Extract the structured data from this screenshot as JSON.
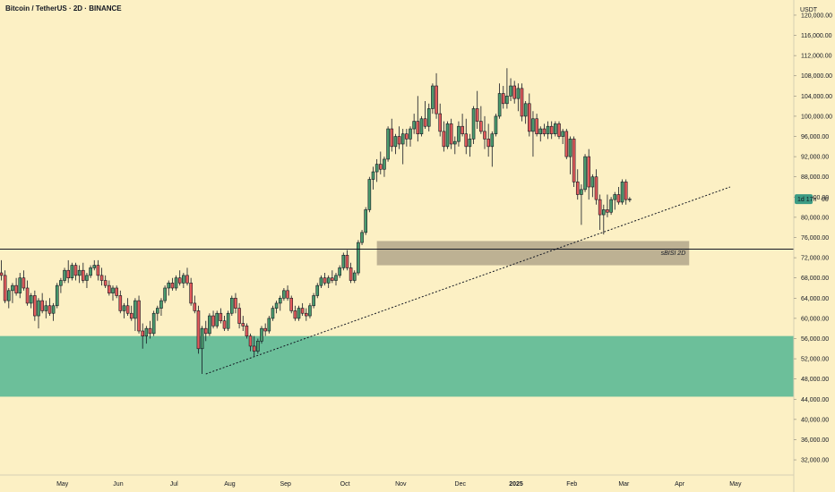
{
  "header": {
    "symbol_title": "Bitcoin / TetherUS · 2D · BINANCE"
  },
  "price_axis": {
    "currency": "USDT",
    "countdown_label": "1d 17h",
    "countdown_price_suffix": "00"
  },
  "annotations": {
    "zone_label": "sBISI 2D"
  },
  "colors": {
    "background": "#fcf0c4",
    "bull": "#26a69a",
    "bear": "#ef5350",
    "candle_bull_body": "#4a9b6e",
    "candle_bear_body": "#e35b5b",
    "green_zone": "#6cbf9a",
    "grey_zone": "#b9ad90",
    "label_bg": "#3d9c84"
  },
  "chart_data": {
    "type": "candlestick",
    "title": "Bitcoin / TetherUS · 2D · BINANCE",
    "y_unit": "USDT",
    "ylim": [
      29000,
      123000
    ],
    "y_ticks": [
      "120,000.00",
      "116,000.00",
      "112,000.00",
      "108,000.00",
      "104,000.00",
      "100,000.00",
      "96,000.00",
      "92,000.00",
      "88,000.00",
      "84,000.00",
      "80,000.00",
      "76,000.00",
      "72,000.00",
      "68,000.00",
      "64,000.00",
      "60,000.00",
      "56,000.00",
      "52,000.00",
      "48,000.00",
      "44,000.00",
      "40,000.00",
      "36,000.00",
      "32,000.00"
    ],
    "x_ticks": [
      "May",
      "Jun",
      "Jul",
      "Aug",
      "Sep",
      "Oct",
      "Nov",
      "Dec",
      "2025",
      "Feb",
      "Mar",
      "Apr",
      "May"
    ],
    "x_tick_bold": [
      "2025"
    ],
    "x_tick_index": [
      8,
      23,
      38,
      53,
      68,
      84,
      99,
      115,
      130,
      145,
      159,
      174,
      189
    ],
    "current_price": 83600,
    "horizontal_level": 73700,
    "zones": [
      {
        "name": "green",
        "from": 44500,
        "to": 56500
      },
      {
        "name": "grey",
        "from": 70500,
        "to": 75300,
        "label": "sBISI 2D",
        "start_index": 101,
        "end_index": 185
      }
    ],
    "trendline": {
      "start_index": 55,
      "start_price": 49000,
      "end_index": 196,
      "end_price": 86000
    },
    "ohlc": [
      [
        69000,
        71500,
        67500,
        68500
      ],
      [
        68500,
        69500,
        63000,
        63500
      ],
      [
        63500,
        66000,
        62000,
        65500
      ],
      [
        65500,
        67000,
        63000,
        66500
      ],
      [
        66500,
        68000,
        64500,
        65000
      ],
      [
        65000,
        69000,
        64000,
        68000
      ],
      [
        68000,
        69500,
        65500,
        66000
      ],
      [
        66000,
        67500,
        62500,
        63000
      ],
      [
        63000,
        65000,
        62000,
        64500
      ],
      [
        64500,
        65500,
        59500,
        60500
      ],
      [
        60500,
        64000,
        58000,
        63500
      ],
      [
        63500,
        65000,
        61000,
        61500
      ],
      [
        61500,
        63500,
        60000,
        62500
      ],
      [
        62500,
        64000,
        60500,
        61000
      ],
      [
        61000,
        63000,
        59500,
        62500
      ],
      [
        62500,
        67000,
        62000,
        66500
      ],
      [
        66500,
        68000,
        65000,
        67500
      ],
      [
        67500,
        70000,
        67000,
        69500
      ],
      [
        69500,
        71500,
        67000,
        68000
      ],
      [
        68000,
        71000,
        67500,
        70500
      ],
      [
        70500,
        71000,
        67500,
        68500
      ],
      [
        68500,
        70500,
        67000,
        69500
      ],
      [
        69500,
        71000,
        67000,
        67500
      ],
      [
        67500,
        69000,
        66000,
        68500
      ],
      [
        68500,
        70500,
        68000,
        70000
      ],
      [
        70000,
        71500,
        69500,
        70500
      ],
      [
        70500,
        71500,
        67500,
        68500
      ],
      [
        68500,
        70000,
        66500,
        67500
      ],
      [
        67500,
        68500,
        66000,
        66500
      ],
      [
        66500,
        67500,
        64500,
        65000
      ],
      [
        65000,
        66500,
        63500,
        66000
      ],
      [
        66000,
        66500,
        64000,
        64500
      ],
      [
        64500,
        65500,
        61000,
        61500
      ],
      [
        61500,
        63000,
        60000,
        62500
      ],
      [
        62500,
        64000,
        60500,
        61000
      ],
      [
        61000,
        62500,
        59500,
        60000
      ],
      [
        60000,
        64000,
        57500,
        63500
      ],
      [
        63500,
        64500,
        57000,
        57500
      ],
      [
        57500,
        59000,
        54000,
        56500
      ],
      [
        56500,
        58500,
        55000,
        58000
      ],
      [
        58000,
        59500,
        56000,
        57000
      ],
      [
        57000,
        61500,
        56500,
        61000
      ],
      [
        61000,
        62500,
        59500,
        62000
      ],
      [
        62000,
        64000,
        60500,
        63500
      ],
      [
        63500,
        66500,
        63000,
        66000
      ],
      [
        66000,
        67500,
        64500,
        67000
      ],
      [
        67000,
        68000,
        65500,
        66000
      ],
      [
        66000,
        68500,
        65500,
        68000
      ],
      [
        68000,
        69500,
        66500,
        67000
      ],
      [
        67000,
        69000,
        66000,
        68500
      ],
      [
        68500,
        70000,
        66500,
        67000
      ],
      [
        67000,
        68000,
        62500,
        63000
      ],
      [
        63000,
        64500,
        61000,
        61500
      ],
      [
        61500,
        62500,
        53000,
        54000
      ],
      [
        54000,
        58500,
        49000,
        58000
      ],
      [
        58000,
        59500,
        55500,
        57000
      ],
      [
        57000,
        61000,
        56500,
        60500
      ],
      [
        60500,
        61500,
        58000,
        58500
      ],
      [
        58500,
        61500,
        58000,
        61000
      ],
      [
        61000,
        62000,
        59000,
        59500
      ],
      [
        59500,
        60500,
        57500,
        58000
      ],
      [
        58000,
        61500,
        57500,
        61000
      ],
      [
        61000,
        64500,
        60500,
        64000
      ],
      [
        64000,
        65000,
        61000,
        62000
      ],
      [
        62000,
        63000,
        58000,
        59000
      ],
      [
        59000,
        60500,
        57500,
        58500
      ],
      [
        58500,
        59000,
        56000,
        56500
      ],
      [
        56500,
        57000,
        53500,
        54500
      ],
      [
        54500,
        56500,
        52500,
        53500
      ],
      [
        53500,
        56000,
        53000,
        55500
      ],
      [
        55500,
        58500,
        55000,
        58000
      ],
      [
        58000,
        59000,
        56500,
        57500
      ],
      [
        57500,
        60500,
        57000,
        60000
      ],
      [
        60000,
        62500,
        59500,
        62000
      ],
      [
        62000,
        63500,
        61000,
        63000
      ],
      [
        63000,
        64500,
        61500,
        64000
      ],
      [
        64000,
        66000,
        63500,
        65500
      ],
      [
        65500,
        66500,
        63500,
        64000
      ],
      [
        64000,
        64500,
        61000,
        61500
      ],
      [
        61500,
        62500,
        59500,
        60000
      ],
      [
        60000,
        62500,
        59500,
        62000
      ],
      [
        62000,
        63000,
        60500,
        61000
      ],
      [
        61000,
        62000,
        59500,
        60500
      ],
      [
        60500,
        63000,
        60000,
        62500
      ],
      [
        62500,
        65000,
        62000,
        64500
      ],
      [
        64500,
        67000,
        64000,
        66500
      ],
      [
        66500,
        68500,
        66000,
        68000
      ],
      [
        68000,
        69000,
        66500,
        67000
      ],
      [
        67000,
        68500,
        66000,
        68000
      ],
      [
        68000,
        69500,
        67000,
        67500
      ],
      [
        67500,
        69000,
        66500,
        68500
      ],
      [
        68500,
        70500,
        68000,
        70000
      ],
      [
        70000,
        73000,
        69500,
        72500
      ],
      [
        72500,
        73500,
        69500,
        70000
      ],
      [
        70000,
        71000,
        67000,
        67500
      ],
      [
        67500,
        69500,
        67000,
        69000
      ],
      [
        69000,
        75500,
        68500,
        75000
      ],
      [
        75000,
        77500,
        74500,
        77000
      ],
      [
        77000,
        82000,
        76500,
        81500
      ],
      [
        81500,
        88000,
        81000,
        87500
      ],
      [
        87500,
        90000,
        85500,
        89000
      ],
      [
        89000,
        91500,
        87000,
        90500
      ],
      [
        90500,
        93000,
        88500,
        89500
      ],
      [
        89500,
        92000,
        88000,
        91500
      ],
      [
        91500,
        98000,
        91000,
        97500
      ],
      [
        97500,
        99500,
        93000,
        94000
      ],
      [
        94000,
        96500,
        92500,
        96000
      ],
      [
        96000,
        98000,
        93500,
        94500
      ],
      [
        94500,
        97500,
        90500,
        96500
      ],
      [
        96500,
        97500,
        94000,
        95500
      ],
      [
        95500,
        98000,
        94000,
        97500
      ],
      [
        97500,
        100500,
        96500,
        99000
      ],
      [
        99000,
        104000,
        95000,
        96500
      ],
      [
        96500,
        100000,
        96000,
        99500
      ],
      [
        99500,
        103000,
        97500,
        98000
      ],
      [
        98000,
        102500,
        97000,
        101500
      ],
      [
        101500,
        106500,
        100500,
        106000
      ],
      [
        106000,
        108500,
        99500,
        100500
      ],
      [
        100500,
        102500,
        96000,
        97000
      ],
      [
        97000,
        99000,
        93000,
        94000
      ],
      [
        94000,
        99000,
        93500,
        98500
      ],
      [
        98500,
        99500,
        93500,
        94500
      ],
      [
        94500,
        96000,
        92500,
        95000
      ],
      [
        95000,
        99000,
        94000,
        98000
      ],
      [
        98000,
        100500,
        96000,
        96500
      ],
      [
        96500,
        99500,
        92500,
        94000
      ],
      [
        94000,
        96500,
        92000,
        95500
      ],
      [
        95500,
        102000,
        94500,
        101500
      ],
      [
        101500,
        105000,
        97500,
        99000
      ],
      [
        99000,
        102000,
        96500,
        97000
      ],
      [
        97000,
        100000,
        93500,
        95500
      ],
      [
        95500,
        98500,
        92000,
        94000
      ],
      [
        94000,
        97000,
        90000,
        96500
      ],
      [
        96500,
        100500,
        96000,
        100000
      ],
      [
        100000,
        106500,
        99500,
        104500
      ],
      [
        104500,
        106000,
        101500,
        102500
      ],
      [
        102500,
        109500,
        101500,
        104000
      ],
      [
        104000,
        107500,
        103000,
        106000
      ],
      [
        106000,
        107000,
        102500,
        103500
      ],
      [
        103500,
        106500,
        101000,
        105500
      ],
      [
        105500,
        106500,
        99000,
        100000
      ],
      [
        100000,
        103000,
        98500,
        102500
      ],
      [
        102500,
        104500,
        96000,
        97000
      ],
      [
        97000,
        101000,
        92000,
        99500
      ],
      [
        99500,
        100500,
        96000,
        96500
      ],
      [
        96500,
        98000,
        95000,
        97500
      ],
      [
        97500,
        98500,
        96000,
        96500
      ],
      [
        96500,
        99000,
        95500,
        98000
      ],
      [
        98000,
        99000,
        95500,
        96500
      ],
      [
        96500,
        99000,
        96000,
        98500
      ],
      [
        98500,
        99000,
        95500,
        96000
      ],
      [
        96000,
        97500,
        94500,
        97000
      ],
      [
        97000,
        97500,
        91500,
        92000
      ],
      [
        92000,
        96000,
        88500,
        95500
      ],
      [
        95500,
        96000,
        86000,
        87000
      ],
      [
        87000,
        89500,
        83500,
        84500
      ],
      [
        84500,
        86500,
        78500,
        85500
      ],
      [
        85500,
        92500,
        85000,
        92000
      ],
      [
        92000,
        93500,
        83500,
        86000
      ],
      [
        86000,
        88500,
        84000,
        88000
      ],
      [
        88000,
        89500,
        82500,
        83500
      ],
      [
        83500,
        84500,
        77500,
        80500
      ],
      [
        80500,
        82500,
        76600,
        81500
      ],
      [
        81500,
        84500,
        80000,
        81000
      ],
      [
        81000,
        84000,
        80500,
        83500
      ],
      [
        83500,
        85000,
        81500,
        84500
      ],
      [
        84500,
        86000,
        82500,
        83000
      ],
      [
        83000,
        87500,
        82500,
        87000
      ],
      [
        87000,
        87500,
        82500,
        83500
      ],
      [
        83500,
        84000,
        83000,
        83600
      ]
    ]
  }
}
